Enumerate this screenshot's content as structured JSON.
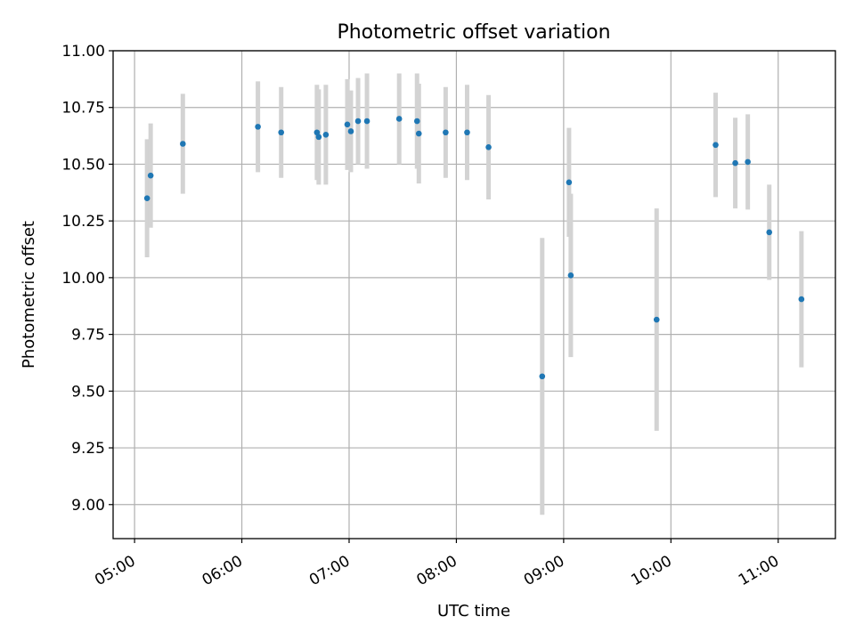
{
  "chart_data": {
    "type": "scatter",
    "title": "Photometric offset variation",
    "xlabel": "UTC time",
    "ylabel": "Photometric offset",
    "x_unit": "UTC time (HH:MM)",
    "xlim": [
      "04:48",
      "11:32"
    ],
    "ylim": [
      8.85,
      11.0
    ],
    "grid": true,
    "point_color": "#1f77b4",
    "errorbar_color": "#d3d3d3",
    "x_ticks": [
      "05:00",
      "06:00",
      "07:00",
      "08:00",
      "09:00",
      "10:00",
      "11:00"
    ],
    "y_ticks": [
      "11.00",
      "10.75",
      "10.50",
      "10.25",
      "10.00",
      "9.75",
      "9.50",
      "9.25",
      "9.00"
    ],
    "series": [
      {
        "points": [
          {
            "x": "05:07",
            "y": 10.35,
            "err": 0.26
          },
          {
            "x": "05:09",
            "y": 10.45,
            "err": 0.23
          },
          {
            "x": "05:27",
            "y": 10.59,
            "err": 0.22
          },
          {
            "x": "06:09",
            "y": 10.665,
            "err": 0.2
          },
          {
            "x": "06:22",
            "y": 10.64,
            "err": 0.2
          },
          {
            "x": "06:42",
            "y": 10.64,
            "err": 0.21
          },
          {
            "x": "06:43",
            "y": 10.62,
            "err": 0.21
          },
          {
            "x": "06:47",
            "y": 10.63,
            "err": 0.22
          },
          {
            "x": "06:59",
            "y": 10.675,
            "err": 0.2
          },
          {
            "x": "07:01",
            "y": 10.645,
            "err": 0.18
          },
          {
            "x": "07:05",
            "y": 10.69,
            "err": 0.19
          },
          {
            "x": "07:10",
            "y": 10.69,
            "err": 0.21
          },
          {
            "x": "07:28",
            "y": 10.7,
            "err": 0.2
          },
          {
            "x": "07:38",
            "y": 10.69,
            "err": 0.21
          },
          {
            "x": "07:39",
            "y": 10.635,
            "err": 0.22
          },
          {
            "x": "07:54",
            "y": 10.64,
            "err": 0.2
          },
          {
            "x": "08:06",
            "y": 10.64,
            "err": 0.21
          },
          {
            "x": "08:18",
            "y": 10.575,
            "err": 0.23
          },
          {
            "x": "08:48",
            "y": 9.565,
            "err": 0.61
          },
          {
            "x": "09:03",
            "y": 10.42,
            "err": 0.24
          },
          {
            "x": "09:04",
            "y": 10.01,
            "err": 0.36
          },
          {
            "x": "09:52",
            "y": 9.815,
            "err": 0.49
          },
          {
            "x": "10:25",
            "y": 10.585,
            "err": 0.23
          },
          {
            "x": "10:36",
            "y": 10.505,
            "err": 0.2
          },
          {
            "x": "10:43",
            "y": 10.51,
            "err": 0.21
          },
          {
            "x": "10:55",
            "y": 10.2,
            "err": 0.21
          },
          {
            "x": "11:13",
            "y": 9.905,
            "err": 0.3
          }
        ]
      }
    ]
  }
}
